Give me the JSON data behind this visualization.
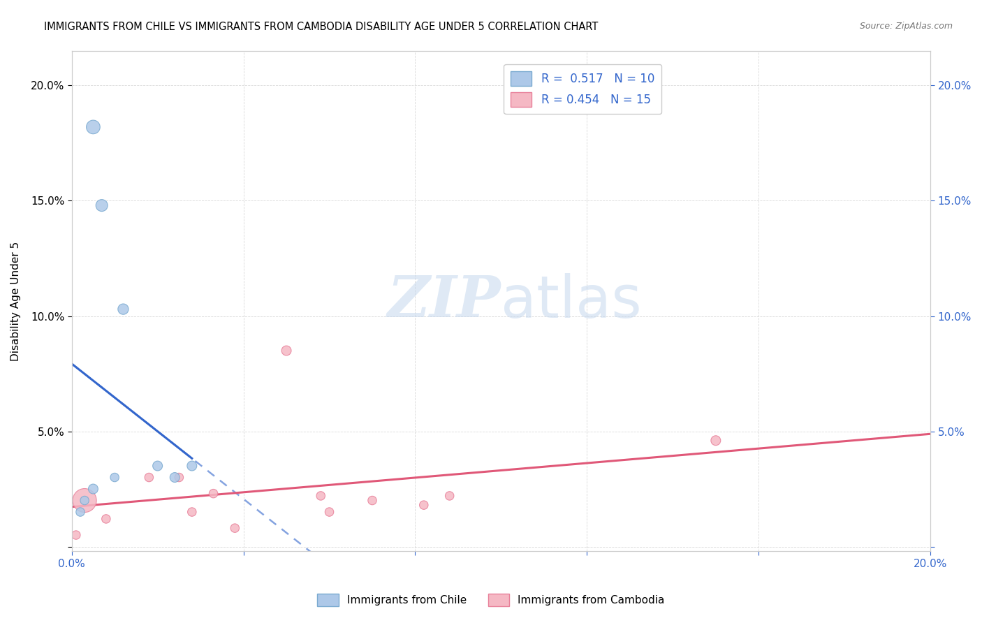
{
  "title": "IMMIGRANTS FROM CHILE VS IMMIGRANTS FROM CAMBODIA DISABILITY AGE UNDER 5 CORRELATION CHART",
  "source": "Source: ZipAtlas.com",
  "ylabel": "Disability Age Under 5",
  "xlim": [
    0.0,
    0.2
  ],
  "ylim": [
    -0.002,
    0.215
  ],
  "chile_color": "#adc8e8",
  "chile_edge_color": "#7aaad0",
  "chile_line_color": "#3366cc",
  "cambodia_color": "#f5b8c4",
  "cambodia_edge_color": "#e8809a",
  "cambodia_line_color": "#e05878",
  "R_chile": 0.517,
  "N_chile": 10,
  "R_cambodia": 0.454,
  "N_cambodia": 15,
  "chile_points_x": [
    0.005,
    0.007,
    0.012,
    0.02,
    0.024,
    0.028,
    0.005,
    0.003,
    0.01,
    0.002
  ],
  "chile_points_y": [
    0.182,
    0.148,
    0.103,
    0.035,
    0.03,
    0.035,
    0.025,
    0.02,
    0.03,
    0.015
  ],
  "chile_sizes": [
    200,
    150,
    120,
    100,
    100,
    100,
    100,
    80,
    80,
    80
  ],
  "cambodia_points_x": [
    0.001,
    0.008,
    0.018,
    0.025,
    0.028,
    0.033,
    0.038,
    0.05,
    0.058,
    0.06,
    0.07,
    0.082,
    0.088,
    0.15,
    0.003
  ],
  "cambodia_points_y": [
    0.005,
    0.012,
    0.03,
    0.03,
    0.015,
    0.023,
    0.008,
    0.085,
    0.022,
    0.015,
    0.02,
    0.018,
    0.022,
    0.046,
    0.02
  ],
  "cambodia_sizes": [
    80,
    80,
    80,
    80,
    80,
    80,
    80,
    100,
    80,
    80,
    80,
    80,
    80,
    100,
    600
  ],
  "watermark_zip": "ZIP",
  "watermark_atlas": "atlas",
  "watermark_color_zip": "#c5d8ee",
  "watermark_color_atlas": "#c5d8ee",
  "background_color": "#ffffff",
  "grid_color": "#d8d8d8"
}
